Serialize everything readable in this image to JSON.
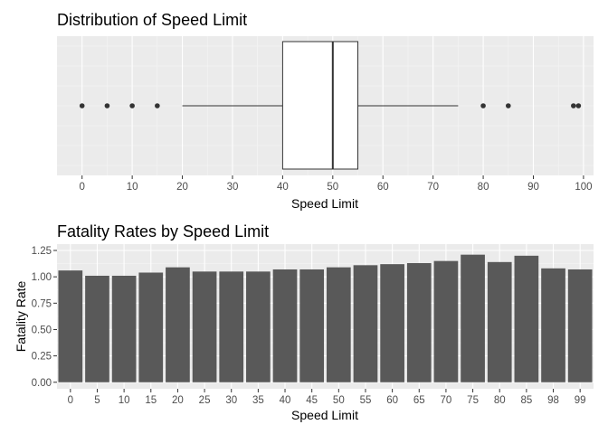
{
  "chart_data": [
    {
      "type": "boxplot",
      "title": "Distribution of Speed Limit",
      "xlabel": "Speed Limit",
      "ylabel": "",
      "xlim": [
        -5,
        102
      ],
      "x_ticks": [
        0,
        10,
        20,
        30,
        40,
        50,
        60,
        70,
        80,
        90,
        100
      ],
      "grid": true,
      "box": {
        "q1": 40,
        "median": 50,
        "q3": 55,
        "whisker_low": 20,
        "whisker_high": 75
      },
      "outliers": [
        0,
        5,
        10,
        15,
        80,
        85,
        98,
        99
      ],
      "colors": {
        "panel": "#ebebeb",
        "grid_major": "#ffffff",
        "grid_minor": "#f5f5f5",
        "box_fill": "#ffffff",
        "stroke": "#333333"
      }
    },
    {
      "type": "bar",
      "title": "Fatality Rates by Speed Limit",
      "xlabel": "Speed Limit",
      "ylabel": "Fatality Rate",
      "categories": [
        "0",
        "5",
        "10",
        "15",
        "20",
        "25",
        "30",
        "35",
        "40",
        "45",
        "50",
        "55",
        "60",
        "65",
        "70",
        "75",
        "80",
        "85",
        "98",
        "99"
      ],
      "values": [
        1.06,
        1.01,
        1.01,
        1.04,
        1.09,
        1.05,
        1.05,
        1.05,
        1.07,
        1.07,
        1.09,
        1.11,
        1.12,
        1.13,
        1.15,
        1.21,
        1.14,
        1.2,
        1.08,
        1.07
      ],
      "ylim": [
        -0.062,
        1.31
      ],
      "y_ticks": [
        "0.00",
        "0.25",
        "0.50",
        "0.75",
        "1.00",
        "1.25"
      ],
      "grid": true,
      "colors": {
        "bar": "#595959",
        "panel": "#ebebeb",
        "grid_major": "#ffffff",
        "grid_minor": "#f5f5f5"
      }
    }
  ]
}
